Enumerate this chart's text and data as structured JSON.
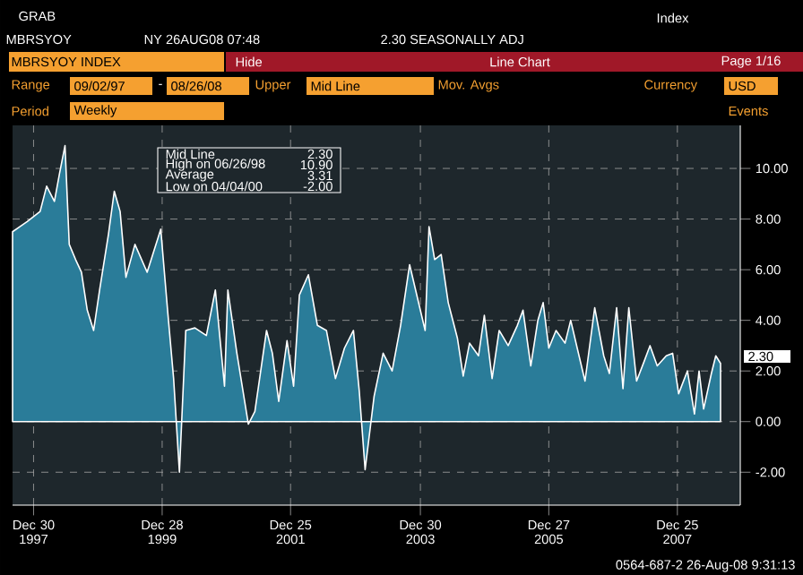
{
  "chart_data": {
    "type": "area",
    "x": [
      "1997-09-02",
      "1997-11-24",
      "1998-02-05",
      "1998-03-14",
      "1998-04-27",
      "1998-05-26",
      "1998-06-26",
      "1998-07-20",
      "1998-08-25",
      "1998-09-27",
      "1998-10-30",
      "1998-12-05",
      "1999-01-08",
      "1999-02-27",
      "1999-04-01",
      "1999-05-04",
      "1999-06-06",
      "1999-07-27",
      "1999-10-04",
      "1999-12-20",
      "2000-01-29",
      "2000-03-02",
      "2000-04-04",
      "2000-05-10",
      "2000-07-01",
      "2000-09-04",
      "2000-10-25",
      "2000-12-16",
      "2001-01-04",
      "2001-02-24",
      "2001-04-30",
      "2001-06-06",
      "2001-07-09",
      "2001-08-11",
      "2001-09-13",
      "2001-10-19",
      "2001-12-05",
      "2002-01-11",
      "2002-02-13",
      "2002-04-05",
      "2002-05-26",
      "2002-07-16",
      "2002-09-05",
      "2002-10-26",
      "2002-12-16",
      "2003-01-18",
      "2003-02-20",
      "2003-04-12",
      "2003-06-02",
      "2003-07-23",
      "2003-09-09",
      "2003-10-30",
      "2004-01-26",
      "2004-02-17",
      "2004-03-20",
      "2004-04-26",
      "2004-06-05",
      "2004-07-27",
      "2004-08-29",
      "2004-10-04",
      "2004-11-24",
      "2004-12-27",
      "2005-02-09",
      "2005-03-21",
      "2005-05-11",
      "2005-07-02",
      "2005-08-03",
      "2005-09-16",
      "2005-10-26",
      "2005-11-25",
      "2005-12-27",
      "2006-02-06",
      "2006-03-29",
      "2006-04-30",
      "2006-06-06",
      "2006-07-20",
      "2006-09-13",
      "2006-11-03",
      "2006-12-05",
      "2007-01-15",
      "2007-02-20",
      "2007-03-25",
      "2007-05-08",
      "2007-06-21",
      "2007-07-23",
      "2007-09-02",
      "2007-10-23",
      "2007-11-28",
      "2008-01-01",
      "2008-02-20",
      "2008-03-31",
      "2008-04-26",
      "2008-05-22",
      "2008-07-05",
      "2008-07-30",
      "2008-08-26"
    ],
    "values": [
      7.5,
      7.9,
      8.3,
      9.3,
      8.7,
      9.8,
      10.9,
      7.0,
      6.4,
      5.9,
      4.4,
      3.6,
      5.2,
      7.4,
      9.1,
      8.3,
      5.7,
      7.0,
      5.9,
      7.6,
      4.3,
      1.7,
      -2.0,
      3.6,
      3.7,
      3.4,
      5.2,
      1.4,
      5.2,
      2.7,
      -0.1,
      0.4,
      2.0,
      3.6,
      2.7,
      0.8,
      3.2,
      1.4,
      5.0,
      5.8,
      3.8,
      3.6,
      1.7,
      2.9,
      3.6,
      1.2,
      -1.9,
      1.0,
      2.7,
      2.0,
      3.8,
      6.2,
      3.6,
      7.7,
      6.4,
      6.6,
      4.7,
      3.3,
      1.8,
      3.1,
      2.6,
      4.2,
      1.7,
      3.6,
      3.0,
      3.8,
      4.4,
      2.2,
      4.0,
      4.7,
      2.9,
      3.6,
      3.1,
      4.0,
      2.9,
      1.6,
      4.5,
      2.6,
      1.9,
      4.5,
      1.3,
      4.5,
      1.6,
      2.4,
      3.0,
      2.2,
      2.6,
      2.7,
      1.1,
      2.0,
      0.3,
      2.0,
      0.5,
      1.9,
      2.6,
      2.3
    ],
    "color": "#2a7c99",
    "xlim": [
      "1997-09-02",
      "2008-12-16"
    ],
    "ylim": [
      -3.3,
      11.7
    ],
    "xticks": [
      {
        "value": "1997-12-30",
        "label": "Dec 30 1997"
      },
      {
        "value": "1999-12-28",
        "label": "Dec 28 1999"
      },
      {
        "value": "2001-12-25",
        "label": "Dec 25 2001"
      },
      {
        "value": "2003-12-30",
        "label": "Dec 30 2003"
      },
      {
        "value": "2005-12-27",
        "label": "Dec 27 2005"
      },
      {
        "value": "2007-12-25",
        "label": "Dec 25 2007"
      }
    ],
    "yticks": [
      {
        "value": -2,
        "label": "-2.00"
      },
      {
        "value": 0,
        "label": "0.00"
      },
      {
        "value": 2,
        "label": "2.00"
      },
      {
        "value": 4,
        "label": "4.00"
      },
      {
        "value": 6,
        "label": "6.00"
      },
      {
        "value": 8,
        "label": "8.00"
      },
      {
        "value": 10,
        "label": "10.00"
      }
    ],
    "grid": true,
    "annotations": [
      "GRAB",
      "MBRSYOY",
      "NY 26AUG08 07:48",
      "2.30 SEASONALLY ADJ",
      "Index",
      "MBRSYOY INDEX",
      "Hide",
      "Line Chart",
      "Page 1/16",
      "Range",
      "09/02/97",
      "-",
      "08/26/08",
      "Upper",
      "Mid Line",
      "Mov. Avgs",
      "Currency",
      "USD",
      "Period",
      "Weekly",
      "Events",
      "Mid Line",
      "2.30",
      "High on 06/26/98",
      "10.90",
      "Average",
      "3.31",
      "Low on 04/04/00",
      "-2.00",
      "0564-687-2 26-Aug-08 9:31:13",
      "2.30"
    ]
  }
}
